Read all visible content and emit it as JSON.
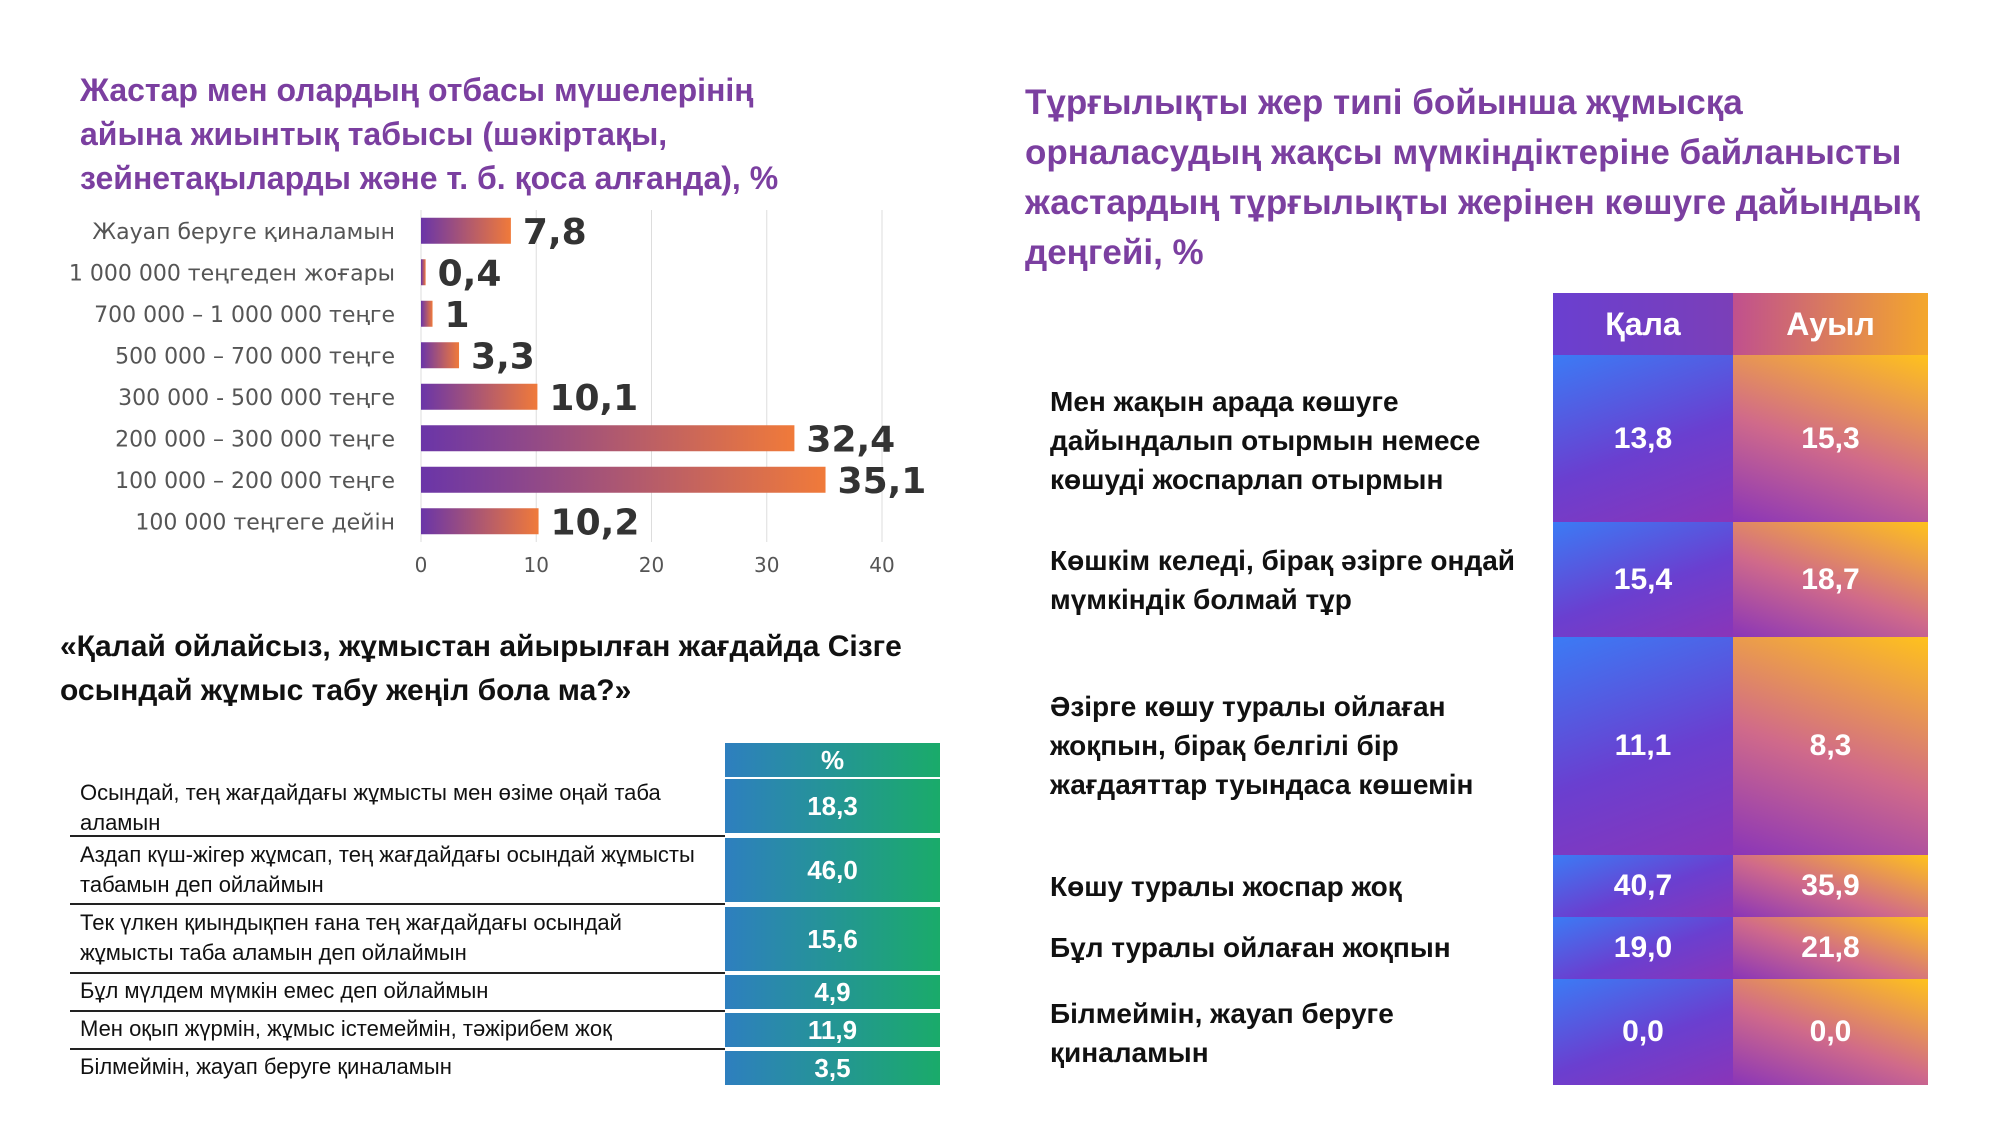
{
  "chart_data": [
    {
      "type": "bar",
      "title": "Жастар мен олардың отбасы мүшелерінің айына жиынтық табысы (шәкіртақы, зейнетақыларды және т. б. қоса алғанда), %",
      "categories": [
        "Жауап беруге қиналамын",
        "1 000 000 теңгеден жоғары",
        "700 000 – 1 000 000 теңге",
        "500 000 – 700 000 теңге",
        "300 000 - 500 000 теңге",
        "200 000 – 300 000 теңге",
        "100 000 – 200 000 теңге",
        "100 000 теңгеге дейін"
      ],
      "values": [
        7.8,
        0.4,
        1,
        3.3,
        10.1,
        32.4,
        35.1,
        10.2
      ],
      "value_labels": [
        "7,8",
        "0,4",
        "1",
        "3,3",
        "10,1",
        "32,4",
        "35,1",
        "10,2"
      ],
      "xticks": [
        "0",
        "10",
        "20",
        "30",
        "40"
      ],
      "xlim": [
        0,
        40
      ],
      "orientation": "horizontal",
      "grid": true
    },
    {
      "type": "table",
      "title": "«Қалай ойлайсыз, жұмыстан айырылған жағдайда Сізге осындай жұмыс табу жеңіл бола ма?»",
      "header": "%",
      "rows": [
        {
          "label": "Осындай, тең жағдайдағы жұмысты мен өзіме оңай таба аламын",
          "value": "18,3"
        },
        {
          "label": "Аздап күш-жігер жұмсап, тең жағдайдағы осындай жұмысты табамын деп ойлаймын",
          "value": "46,0"
        },
        {
          "label": "Тек үлкен қиындықпен ғана тең жағдайдағы осындай жұмысты таба аламын деп ойлаймын",
          "value": "15,6"
        },
        {
          "label": "Бұл мүлдем мүмкін емес деп ойлаймын",
          "value": "4,9"
        },
        {
          "label": "Мен оқып жүрмін, жұмыс істемеймін, тәжірибем жоқ",
          "value": "11,9"
        },
        {
          "label": "Білмеймін, жауап беруге қиналамын",
          "value": "3,5"
        }
      ]
    },
    {
      "type": "table",
      "title": "Тұрғылықты жер типі бойынша жұмысқа орналасудың жақсы мүмкіндіктеріне байланысты жастардың тұрғылықты жерінен көшуге дайындық деңгейі, %",
      "columns": [
        "Қала",
        "Ауыл"
      ],
      "rows": [
        {
          "label": "Мен жақын арада көшуге дайындалып отырмын немесе көшуді жоспарлап отырмын",
          "qala": "13,8",
          "auyl": "15,3"
        },
        {
          "label": "Көшкім келеді, бірақ әзірге ондай мүмкіндік болмай тұр",
          "qala": "15,4",
          "auyl": "18,7"
        },
        {
          "label": "Әзірге көшу туралы ойлаған жоқпын, бірақ белгілі бір жағдаяттар туындаса көшемін",
          "qala": "11,1",
          "auyl": "8,3"
        },
        {
          "label": "Көшу туралы жоспар жоқ",
          "qala": "40,7",
          "auyl": "35,9"
        },
        {
          "label": "Бұл туралы ойлаған жоқпын",
          "qala": "19,0",
          "auyl": "21,8"
        },
        {
          "label": "Білмеймін, жауап беруге қиналамын",
          "qala": "0,0",
          "auyl": "0,0"
        }
      ]
    }
  ],
  "colors": {
    "title": "#7b3fa0",
    "bar_start": "#6a35a8",
    "bar_end": "#f07a3a",
    "table2_start": "#2e7fbf",
    "table2_end": "#1aab6a",
    "qala": "#3b7bf5",
    "auyl": "#ffc21c"
  }
}
